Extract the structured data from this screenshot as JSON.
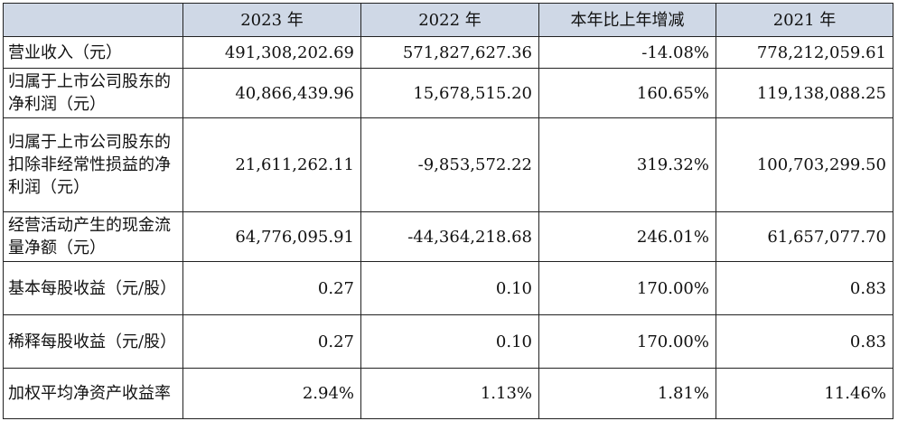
{
  "table": {
    "headers": [
      "",
      "2023 年",
      "2022 年",
      "本年比上年增减",
      "2021 年"
    ],
    "rows": [
      {
        "label": "营业收入（元）",
        "values": [
          "491,308,202.69",
          "571,827,627.36",
          "-14.08%",
          "778,212,059.61"
        ]
      },
      {
        "label": "归属于上市公司股东的净利润（元）",
        "values": [
          "40,866,439.96",
          "15,678,515.20",
          "160.65%",
          "119,138,088.25"
        ]
      },
      {
        "label": "归属于上市公司股东的扣除非经常性损益的净利润（元）",
        "values": [
          "21,611,262.11",
          "-9,853,572.22",
          "319.32%",
          "100,703,299.50"
        ]
      },
      {
        "label": "经营活动产生的现金流量净额（元）",
        "values": [
          "64,776,095.91",
          "-44,364,218.68",
          "246.01%",
          "61,657,077.70"
        ]
      },
      {
        "label": "基本每股收益（元/股）",
        "values": [
          "0.27",
          "0.10",
          "170.00%",
          "0.83"
        ]
      },
      {
        "label": "稀释每股收益（元/股）",
        "values": [
          "0.27",
          "0.10",
          "170.00%",
          "0.83"
        ]
      },
      {
        "label": "加权平均净资产收益率",
        "values": [
          "2.94%",
          "1.13%",
          "1.81%",
          "11.46%"
        ]
      }
    ]
  }
}
